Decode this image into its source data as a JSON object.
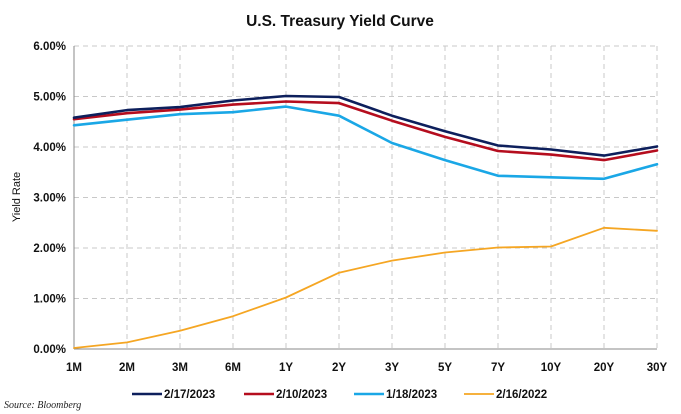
{
  "chart_data": {
    "type": "line",
    "title": "U.S. Treasury Yield Curve",
    "xlabel": "",
    "ylabel": "Yield Rate",
    "categories": [
      "1M",
      "2M",
      "3M",
      "6M",
      "1Y",
      "2Y",
      "3Y",
      "5Y",
      "7Y",
      "10Y",
      "20Y",
      "30Y"
    ],
    "ylim": [
      0,
      6
    ],
    "yticks": [
      "0.00%",
      "1.00%",
      "2.00%",
      "3.00%",
      "4.00%",
      "5.00%",
      "6.00%"
    ],
    "grid": true,
    "legend_position": "bottom",
    "series": [
      {
        "name": "2/17/2023",
        "color": "#0d1f5c",
        "values": [
          4.58,
          4.73,
          4.79,
          4.92,
          5.01,
          4.99,
          4.62,
          4.31,
          4.03,
          3.95,
          3.83,
          4.01
        ]
      },
      {
        "name": "2/10/2023",
        "color": "#b50d1e",
        "values": [
          4.55,
          4.67,
          4.74,
          4.84,
          4.9,
          4.87,
          4.52,
          4.2,
          3.92,
          3.85,
          3.74,
          3.93
        ]
      },
      {
        "name": "1/18/2023",
        "color": "#1aa7e6",
        "values": [
          4.43,
          4.54,
          4.65,
          4.69,
          4.8,
          4.62,
          4.08,
          3.74,
          3.43,
          3.4,
          3.37,
          3.66
        ]
      },
      {
        "name": "2/16/2022",
        "color": "#f5a623",
        "values": [
          0.02,
          0.13,
          0.36,
          0.65,
          1.02,
          1.51,
          1.75,
          1.91,
          2.01,
          2.03,
          2.4,
          2.34
        ]
      }
    ]
  },
  "source": "Source: Bloomberg"
}
